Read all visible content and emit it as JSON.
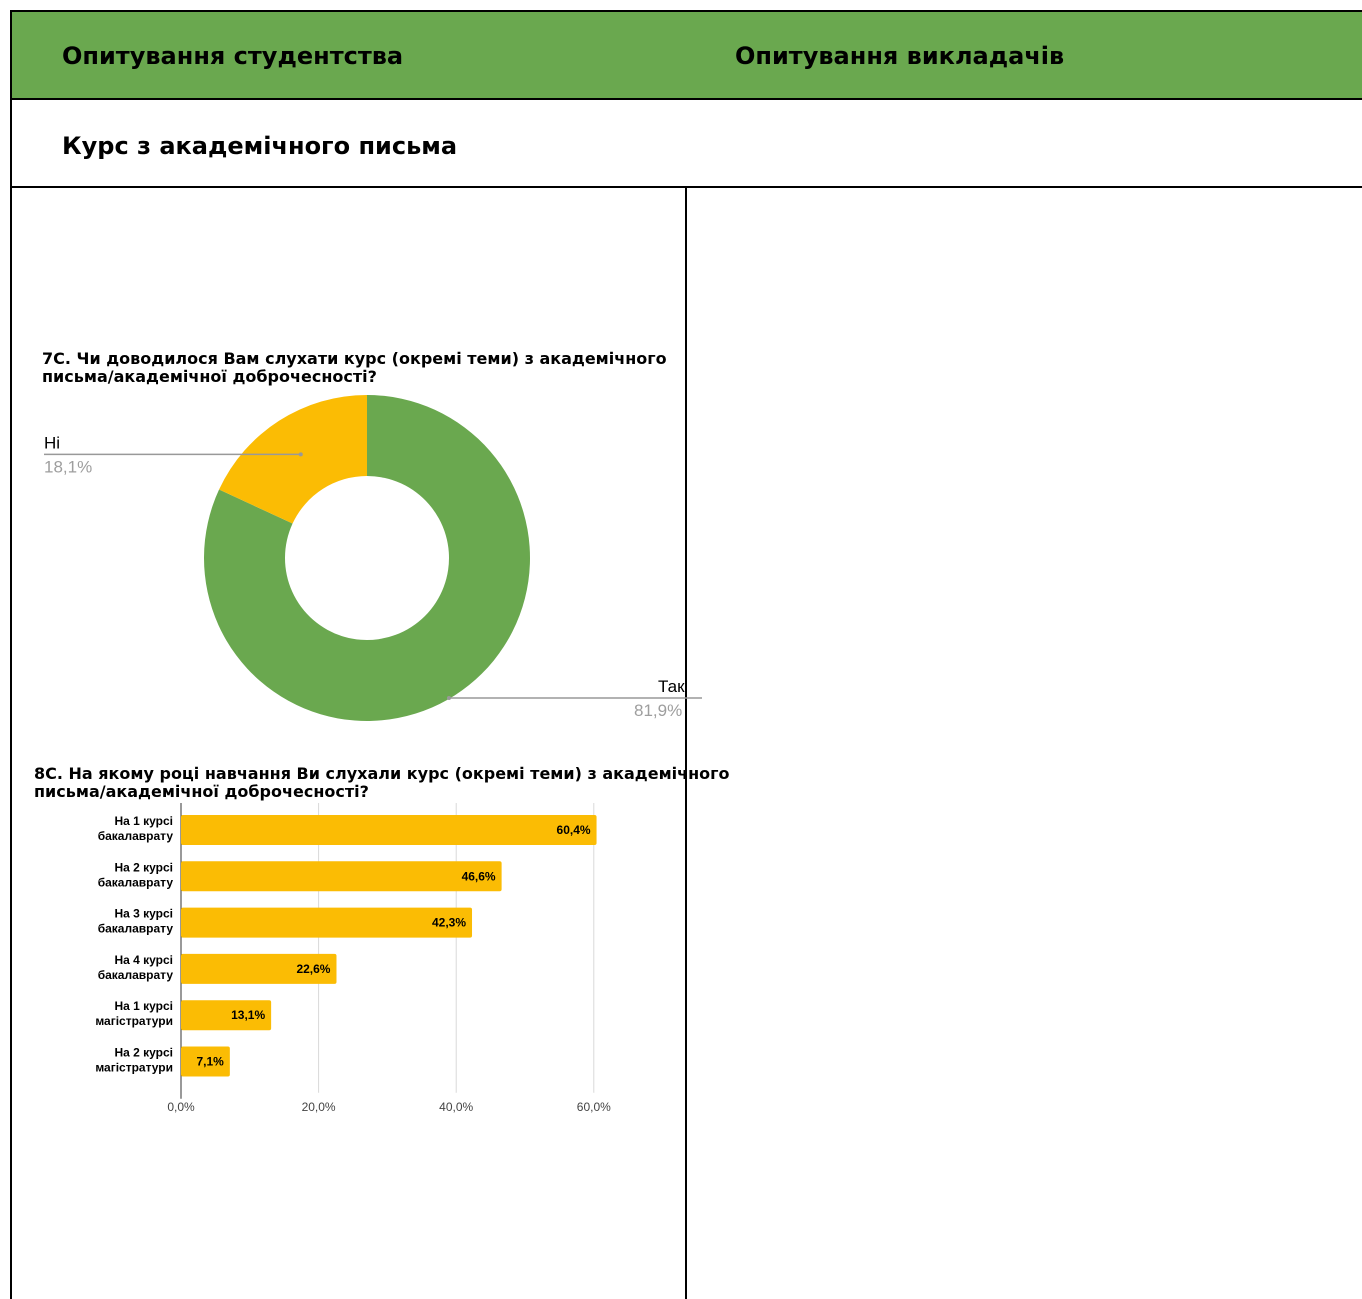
{
  "header": {
    "left_title": "Опитування студентства",
    "right_title": "Опитування викладачів"
  },
  "section": {
    "title": "Курс з академічного письма"
  },
  "colors": {
    "header_bg": "#6aa84f",
    "green": "#6aa84f",
    "yellow": "#fbbc04"
  },
  "chart_data": [
    {
      "type": "pie",
      "title_line1": "7С. Чи доводилося Вам слухати курс (окремі теми) з академічного",
      "title_line2": "письма/академічної доброчесності?",
      "slices": [
        {
          "label": "Так",
          "value": 81.9,
          "pct_label": "81,9%",
          "color": "#6aa84f"
        },
        {
          "label": "Ні",
          "value": 18.1,
          "pct_label": "18,1%",
          "color": "#fbbc04"
        }
      ]
    },
    {
      "type": "bar",
      "orientation": "horizontal",
      "title_line1": "8С. На якому році навчання Ви слухали курс (окремі теми) з академічного",
      "title_line2": "письма/академічної доброчесності?",
      "categories": [
        [
          "На 1 курсі",
          "бакалаврату"
        ],
        [
          "На 2 курсі",
          "бакалаврату"
        ],
        [
          "На 3 курсі",
          "бакалаврату"
        ],
        [
          "На 4 курсі",
          "бакалаврату"
        ],
        [
          "На 1 курсі",
          "магістратури"
        ],
        [
          "На 2 курсі",
          "магістратури"
        ]
      ],
      "values": [
        60.4,
        46.6,
        42.3,
        22.6,
        13.1,
        7.1
      ],
      "value_labels": [
        "60,4%",
        "46,6%",
        "42,3%",
        "22,6%",
        "13,1%",
        "7,1%"
      ],
      "xlim": [
        0,
        65
      ],
      "xticks": [
        0,
        20,
        40,
        60
      ],
      "xtick_labels": [
        "0,0%",
        "20,0%",
        "40,0%",
        "60,0%"
      ],
      "grid": true,
      "color": "#fbbc04"
    }
  ]
}
